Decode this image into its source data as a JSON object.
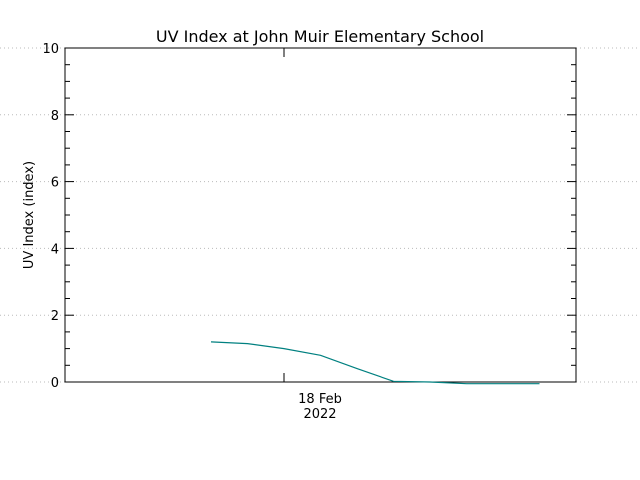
{
  "chart_data": {
    "type": "line",
    "title": "UV Index at John Muir Elementary School",
    "ylabel": "UV Index (index)",
    "xlabel": "",
    "x_tick_labels": [
      {
        "line1": "18 Feb",
        "line2": "2022"
      }
    ],
    "ylim": [
      0,
      10
    ],
    "y_ticks": [
      0,
      2,
      4,
      6,
      8,
      10
    ],
    "grid": "horizontal dotted at major y ticks",
    "series": [
      {
        "color": "#008080",
        "points": [
          {
            "x": "2022-02-17T21:00",
            "y": 1.2
          },
          {
            "x": "2022-02-18T00:00",
            "y": 1.15
          },
          {
            "x": "2022-02-18T03:00",
            "y": 1.0
          },
          {
            "x": "2022-02-18T06:00",
            "y": 0.8
          },
          {
            "x": "2022-02-18T09:00",
            "y": 0.4
          },
          {
            "x": "2022-02-18T12:00",
            "y": 0.02
          },
          {
            "x": "2022-02-18T15:00",
            "y": 0.0
          },
          {
            "x": "2022-02-18T18:00",
            "y": -0.05
          },
          {
            "x": "2022-02-18T21:00",
            "y": -0.05
          },
          {
            "x": "2022-02-19T00:00",
            "y": -0.05
          }
        ]
      }
    ]
  }
}
